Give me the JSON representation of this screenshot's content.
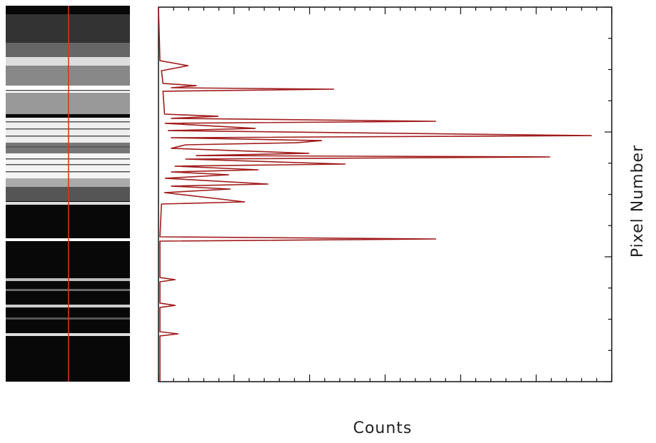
{
  "chart_data": {
    "type": "line",
    "color": "#a11c1c",
    "x_label": "Counts",
    "y_label": "Pixel Number",
    "xlim": [
      0,
      6
    ],
    "ylim": [
      0,
      3
    ],
    "xticks": [
      0,
      1,
      2,
      3,
      4,
      5,
      6
    ],
    "yticks": [
      0,
      1,
      2,
      3
    ],
    "values": [
      0,
      0.02,
      0.39,
      0.04,
      0.06,
      0.5,
      0.17,
      2.32,
      0.06,
      0.08,
      0.79,
      0.17,
      3.67,
      0.09,
      1.28,
      0.13,
      5.73,
      0.17,
      2.16,
      1.83,
      0.36,
      0.17,
      1.99,
      0.5,
      5.18,
      0.36,
      2.47,
      0.22,
      1.32,
      0.17,
      0.93,
      0.09,
      1.45,
      0.17,
      0.95,
      0.08,
      1.14,
      0.04,
      0.02,
      3.67,
      0.02,
      0.02,
      0.22,
      0.02,
      0.02,
      0.22,
      0.02,
      0.02,
      0.26,
      0.02,
      0.02
    ],
    "y": [
      3,
      2.571,
      2.531,
      2.491,
      2.389,
      2.371,
      2.354,
      2.343,
      2.326,
      2.143,
      2.126,
      2.109,
      2.086,
      2.069,
      2.029,
      2.011,
      1.971,
      1.954,
      1.931,
      1.914,
      1.897,
      1.869,
      1.829,
      1.811,
      1.8,
      1.783,
      1.743,
      1.726,
      1.697,
      1.68,
      1.657,
      1.629,
      1.583,
      1.566,
      1.543,
      1.514,
      1.44,
      1.423,
      1.16,
      1.143,
      1.126,
      0.834,
      0.817,
      0.8,
      0.629,
      0.611,
      0.594,
      0.4,
      0.383,
      0.366,
      0
    ]
  }
}
